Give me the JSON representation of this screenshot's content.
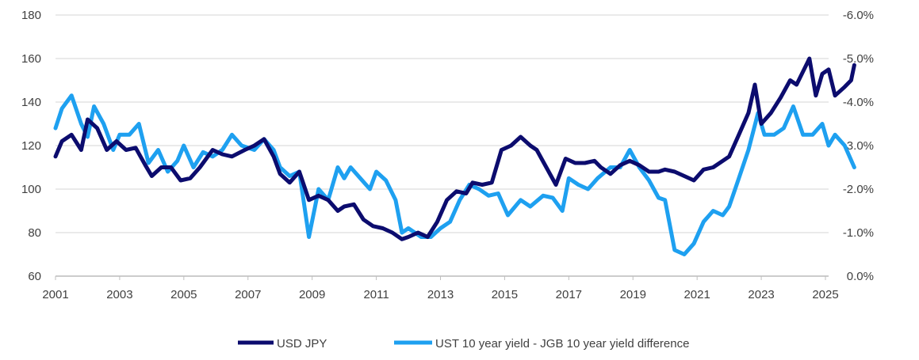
{
  "chart_data": {
    "type": "line",
    "title": "",
    "xlabel": "",
    "ylabel": "",
    "y2label": "",
    "x_ticks": [
      "2001",
      "2003",
      "2005",
      "2007",
      "2009",
      "2011",
      "2013",
      "2015",
      "2017",
      "2019",
      "2021",
      "2023",
      "2025"
    ],
    "xlim": [
      2001,
      2026
    ],
    "ylim": [
      60,
      180
    ],
    "y_ticks": [
      "60",
      "80",
      "100",
      "120",
      "140",
      "160",
      "180"
    ],
    "y2lim": [
      0.0,
      -6.0
    ],
    "y2_inverted": true,
    "y2_ticks": [
      "0.0%",
      "-1.0%",
      "-2.0%",
      "-3.0%",
      "-4.0%",
      "-5.0%",
      "-6.0%"
    ],
    "grid": "horizontal",
    "legend_position": "bottom",
    "colors": {
      "usdjpy": "#0c0c6e",
      "spread": "#1ea0f0",
      "grid": "#e3e3e3"
    },
    "series": [
      {
        "name": "USD JPY",
        "axis": "left",
        "points": [
          [
            2001.0,
            115
          ],
          [
            2001.2,
            122
          ],
          [
            2001.5,
            125
          ],
          [
            2001.8,
            118
          ],
          [
            2002.0,
            132
          ],
          [
            2002.3,
            128
          ],
          [
            2002.6,
            118
          ],
          [
            2002.9,
            122
          ],
          [
            2003.2,
            118
          ],
          [
            2003.5,
            119
          ],
          [
            2003.8,
            111
          ],
          [
            2004.0,
            106
          ],
          [
            2004.3,
            110
          ],
          [
            2004.6,
            110
          ],
          [
            2004.9,
            104
          ],
          [
            2005.2,
            105
          ],
          [
            2005.5,
            110
          ],
          [
            2005.9,
            118
          ],
          [
            2006.2,
            116
          ],
          [
            2006.5,
            115
          ],
          [
            2006.9,
            118
          ],
          [
            2007.2,
            120
          ],
          [
            2007.5,
            123
          ],
          [
            2007.8,
            115
          ],
          [
            2008.0,
            107
          ],
          [
            2008.3,
            103
          ],
          [
            2008.6,
            108
          ],
          [
            2008.9,
            95
          ],
          [
            2009.2,
            97
          ],
          [
            2009.5,
            95
          ],
          [
            2009.8,
            90
          ],
          [
            2010.0,
            92
          ],
          [
            2010.3,
            93
          ],
          [
            2010.6,
            86
          ],
          [
            2010.9,
            83
          ],
          [
            2011.2,
            82
          ],
          [
            2011.5,
            80
          ],
          [
            2011.8,
            77
          ],
          [
            2012.0,
            78
          ],
          [
            2012.3,
            80
          ],
          [
            2012.6,
            78
          ],
          [
            2012.9,
            85
          ],
          [
            2013.2,
            95
          ],
          [
            2013.5,
            99
          ],
          [
            2013.8,
            98
          ],
          [
            2014.0,
            103
          ],
          [
            2014.3,
            102
          ],
          [
            2014.6,
            103
          ],
          [
            2014.9,
            118
          ],
          [
            2015.2,
            120
          ],
          [
            2015.5,
            124
          ],
          [
            2015.8,
            120
          ],
          [
            2016.0,
            118
          ],
          [
            2016.3,
            110
          ],
          [
            2016.6,
            102
          ],
          [
            2016.9,
            114
          ],
          [
            2017.2,
            112
          ],
          [
            2017.5,
            112
          ],
          [
            2017.8,
            113
          ],
          [
            2018.0,
            110
          ],
          [
            2018.3,
            107
          ],
          [
            2018.6,
            111
          ],
          [
            2018.9,
            113
          ],
          [
            2019.2,
            111
          ],
          [
            2019.5,
            108
          ],
          [
            2019.8,
            108
          ],
          [
            2020.0,
            109
          ],
          [
            2020.3,
            108
          ],
          [
            2020.6,
            106
          ],
          [
            2020.9,
            104
          ],
          [
            2021.2,
            109
          ],
          [
            2021.5,
            110
          ],
          [
            2021.8,
            113
          ],
          [
            2022.0,
            115
          ],
          [
            2022.3,
            125
          ],
          [
            2022.6,
            135
          ],
          [
            2022.8,
            148
          ],
          [
            2023.0,
            130
          ],
          [
            2023.3,
            135
          ],
          [
            2023.6,
            142
          ],
          [
            2023.9,
            150
          ],
          [
            2024.1,
            148
          ],
          [
            2024.5,
            160
          ],
          [
            2024.7,
            143
          ],
          [
            2024.9,
            153
          ],
          [
            2025.1,
            155
          ],
          [
            2025.3,
            143
          ],
          [
            2025.6,
            147
          ],
          [
            2025.8,
            150
          ],
          [
            2025.9,
            157
          ]
        ]
      },
      {
        "name": "UST 10 year yield - JGB 10 year yield difference",
        "axis": "right",
        "points": [
          [
            2001.0,
            -3.4
          ],
          [
            2001.2,
            -3.85
          ],
          [
            2001.5,
            -4.15
          ],
          [
            2001.8,
            -3.5
          ],
          [
            2002.0,
            -3.2
          ],
          [
            2002.2,
            -3.9
          ],
          [
            2002.5,
            -3.5
          ],
          [
            2002.8,
            -2.9
          ],
          [
            2003.0,
            -3.25
          ],
          [
            2003.3,
            -3.25
          ],
          [
            2003.6,
            -3.5
          ],
          [
            2003.9,
            -2.6
          ],
          [
            2004.2,
            -2.9
          ],
          [
            2004.5,
            -2.4
          ],
          [
            2004.8,
            -2.65
          ],
          [
            2005.0,
            -3.0
          ],
          [
            2005.3,
            -2.5
          ],
          [
            2005.6,
            -2.85
          ],
          [
            2005.9,
            -2.75
          ],
          [
            2006.2,
            -2.9
          ],
          [
            2006.5,
            -3.25
          ],
          [
            2006.8,
            -3.0
          ],
          [
            2007.2,
            -2.9
          ],
          [
            2007.5,
            -3.15
          ],
          [
            2007.8,
            -2.9
          ],
          [
            2008.0,
            -2.5
          ],
          [
            2008.3,
            -2.3
          ],
          [
            2008.6,
            -2.4
          ],
          [
            2008.9,
            -0.9
          ],
          [
            2009.2,
            -2.0
          ],
          [
            2009.5,
            -1.75
          ],
          [
            2009.8,
            -2.5
          ],
          [
            2010.0,
            -2.25
          ],
          [
            2010.2,
            -2.5
          ],
          [
            2010.5,
            -2.25
          ],
          [
            2010.8,
            -2.0
          ],
          [
            2011.0,
            -2.4
          ],
          [
            2011.3,
            -2.2
          ],
          [
            2011.6,
            -1.75
          ],
          [
            2011.8,
            -1.0
          ],
          [
            2012.0,
            -1.1
          ],
          [
            2012.4,
            -0.9
          ],
          [
            2012.7,
            -0.9
          ],
          [
            2013.0,
            -1.1
          ],
          [
            2013.3,
            -1.25
          ],
          [
            2013.6,
            -1.75
          ],
          [
            2013.9,
            -2.1
          ],
          [
            2014.2,
            -2.0
          ],
          [
            2014.5,
            -1.85
          ],
          [
            2014.8,
            -1.9
          ],
          [
            2015.1,
            -1.4
          ],
          [
            2015.5,
            -1.75
          ],
          [
            2015.8,
            -1.6
          ],
          [
            2016.2,
            -1.85
          ],
          [
            2016.5,
            -1.8
          ],
          [
            2016.8,
            -1.5
          ],
          [
            2017.0,
            -2.25
          ],
          [
            2017.3,
            -2.1
          ],
          [
            2017.6,
            -2.0
          ],
          [
            2017.9,
            -2.25
          ],
          [
            2018.3,
            -2.5
          ],
          [
            2018.6,
            -2.5
          ],
          [
            2018.9,
            -2.9
          ],
          [
            2019.2,
            -2.5
          ],
          [
            2019.5,
            -2.2
          ],
          [
            2019.8,
            -1.8
          ],
          [
            2020.0,
            -1.75
          ],
          [
            2020.3,
            -0.6
          ],
          [
            2020.6,
            -0.5
          ],
          [
            2020.9,
            -0.75
          ],
          [
            2021.2,
            -1.25
          ],
          [
            2021.5,
            -1.5
          ],
          [
            2021.8,
            -1.4
          ],
          [
            2022.0,
            -1.6
          ],
          [
            2022.3,
            -2.25
          ],
          [
            2022.6,
            -2.9
          ],
          [
            2022.9,
            -3.75
          ],
          [
            2023.1,
            -3.25
          ],
          [
            2023.4,
            -3.25
          ],
          [
            2023.7,
            -3.4
          ],
          [
            2024.0,
            -3.9
          ],
          [
            2024.3,
            -3.25
          ],
          [
            2024.6,
            -3.25
          ],
          [
            2024.9,
            -3.5
          ],
          [
            2025.1,
            -3.0
          ],
          [
            2025.3,
            -3.25
          ],
          [
            2025.6,
            -3.0
          ],
          [
            2025.9,
            -2.5
          ]
        ]
      }
    ]
  }
}
